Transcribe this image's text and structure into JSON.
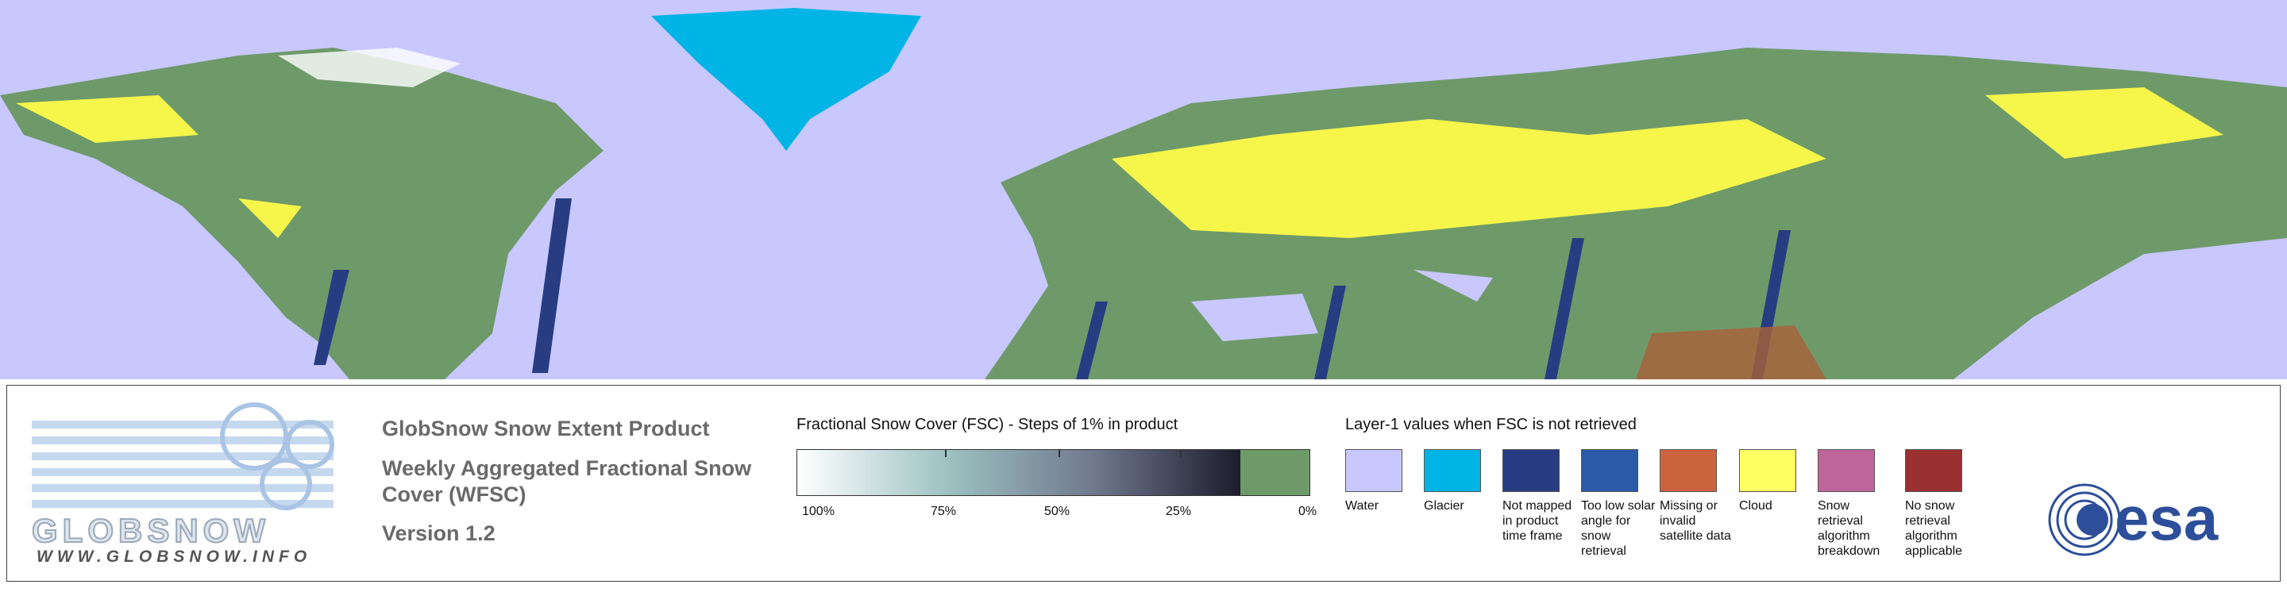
{
  "brand": {
    "name": "GLOBSNOW",
    "url": "WWW.GLOBSNOW.INFO",
    "agency": "esa"
  },
  "product": {
    "title": "GlobSnow Snow Extent Product",
    "subtitle": "Weekly Aggregated Fractional Snow Cover (WFSC)",
    "version": "Version 1.2"
  },
  "fsc_scale": {
    "title": "Fractional Snow Cover (FSC) - Steps of 1% in product",
    "labels": [
      "100%",
      "75%",
      "50%",
      "25%",
      "0%"
    ]
  },
  "layer1": {
    "title": "Layer-1 values when FSC is not retrieved",
    "items": [
      {
        "label": "Water",
        "color": "#c8c8ff"
      },
      {
        "label": "Glacier",
        "color": "#00b4e6"
      },
      {
        "label": "Not mapped in product time frame",
        "color": "#283c82"
      },
      {
        "label": "Too low solar angle for snow retrieval",
        "color": "#2a5aa8"
      },
      {
        "label": "Missing or invalid satellite data",
        "color": "#cd6440"
      },
      {
        "label": "Cloud",
        "color": "#ffff64"
      },
      {
        "label": "Snow retrieval algorithm breakdown",
        "color": "#c0649c"
      },
      {
        "label": "No snow retrieval algorithm applicable",
        "color": "#9b3030"
      }
    ]
  }
}
